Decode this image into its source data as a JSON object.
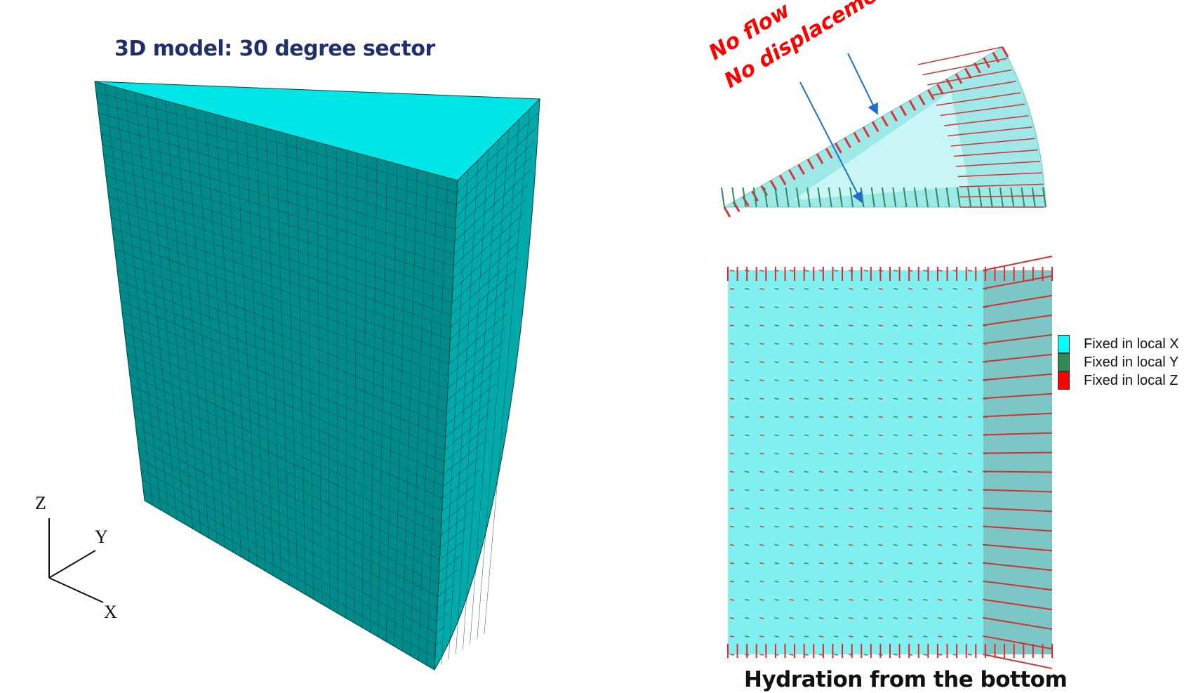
{
  "title": "3D model: 30 degree sector",
  "caption": "Hydration from the bottom",
  "annotations": {
    "no_flow": "No flow",
    "no_displacement": "No displacement"
  },
  "axes": {
    "z": "Z",
    "y": "Y",
    "x": "X"
  },
  "legend": [
    {
      "label": "Fixed in local X",
      "color": "#00ffff"
    },
    {
      "label": "Fixed in local Y",
      "color": "#2e8b57"
    },
    {
      "label": "Fixed in local Z",
      "color": "#ff0000"
    }
  ],
  "colors": {
    "mesh_front": "#008b8b",
    "mesh_top": "#00e5e5",
    "mesh_side": "#00aaaa",
    "annotation": "#ff0000",
    "arrow": "#1f6fd0",
    "title": "#1f2f6b"
  }
}
